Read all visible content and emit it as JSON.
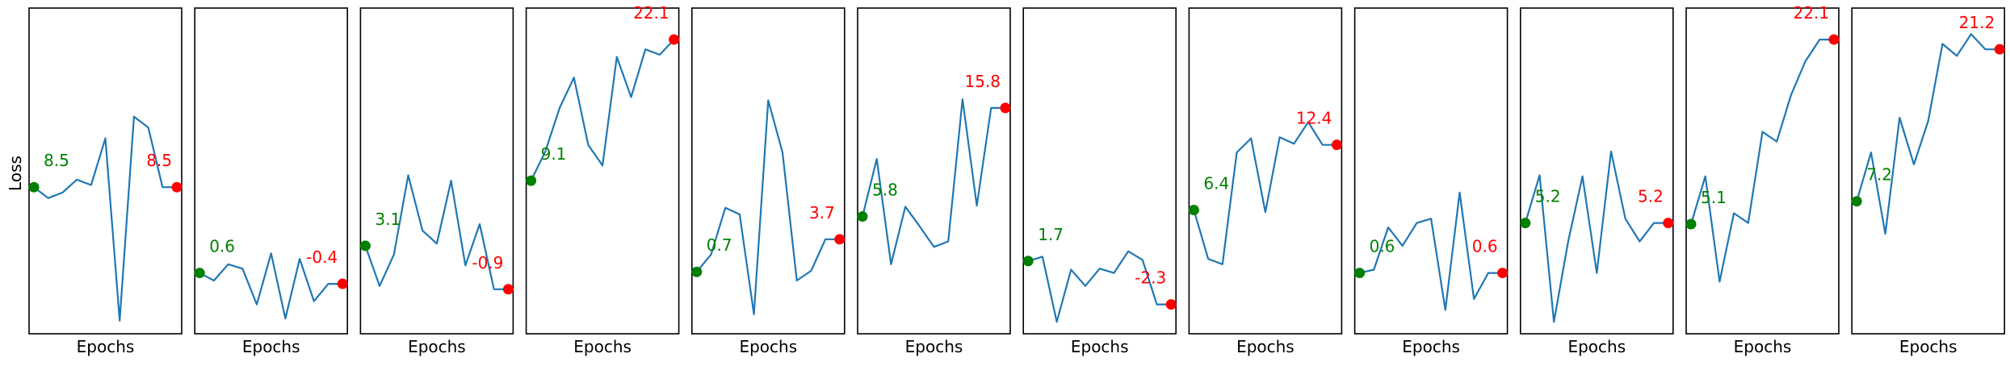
{
  "chart_data": {
    "type": "line",
    "ylabel": "Loss",
    "xlabel": "Epochs",
    "ylim": [
      -5,
      25
    ],
    "line_color": "#1f77b4",
    "start_color": "#008000",
    "end_color": "#ff0000",
    "panels": [
      {
        "x": [
          0,
          1,
          2,
          3,
          4,
          5,
          6,
          7,
          8,
          9,
          10
        ],
        "values": [
          8.5,
          7.5,
          8.0,
          9.2,
          8.7,
          13.0,
          -3.8,
          15.0,
          14.0,
          8.5,
          8.5
        ],
        "start_label": "8.5",
        "end_label": "8.5"
      },
      {
        "x": [
          0,
          1,
          2,
          3,
          4,
          5,
          6,
          7,
          8,
          9,
          10
        ],
        "values": [
          0.6,
          -0.1,
          1.4,
          1.0,
          -2.3,
          2.4,
          -3.6,
          1.9,
          -2.0,
          -0.4,
          -0.4
        ],
        "start_label": "0.6",
        "end_label": "-0.4"
      },
      {
        "x": [
          0,
          1,
          2,
          3,
          4,
          5,
          6,
          7,
          8,
          9,
          10
        ],
        "values": [
          3.1,
          -0.6,
          2.3,
          9.6,
          4.5,
          3.3,
          9.1,
          1.3,
          5.1,
          -0.9,
          -0.9
        ],
        "start_label": "3.1",
        "end_label": "-0.9"
      },
      {
        "x": [
          0,
          1,
          2,
          3,
          4,
          5,
          6,
          7,
          8,
          9,
          10
        ],
        "values": [
          9.1,
          11.8,
          15.8,
          18.6,
          12.4,
          10.5,
          20.5,
          16.8,
          21.2,
          20.7,
          22.1
        ],
        "start_label": "9.1",
        "end_label": "22.1"
      },
      {
        "x": [
          0,
          1,
          2,
          3,
          4,
          5,
          6,
          7,
          8,
          9,
          10
        ],
        "values": [
          0.7,
          2.3,
          6.6,
          6.0,
          -3.2,
          16.5,
          11.7,
          -0.1,
          0.8,
          3.7,
          3.7
        ],
        "start_label": "0.7",
        "end_label": "3.7"
      },
      {
        "x": [
          0,
          1,
          2,
          3,
          4,
          5,
          6,
          7,
          8,
          9,
          10
        ],
        "values": [
          5.8,
          11.1,
          1.4,
          6.7,
          4.9,
          3.0,
          3.5,
          16.6,
          6.8,
          15.8,
          15.8
        ],
        "start_label": "5.8",
        "end_label": "15.8"
      },
      {
        "x": [
          0,
          1,
          2,
          3,
          4,
          5,
          6,
          7,
          8,
          9,
          10
        ],
        "values": [
          1.7,
          2.1,
          -3.9,
          0.9,
          -0.6,
          1.0,
          0.6,
          2.6,
          1.8,
          -2.3,
          -2.3
        ],
        "start_label": "1.7",
        "end_label": "-2.3"
      },
      {
        "x": [
          0,
          1,
          2,
          3,
          4,
          5,
          6,
          7,
          8,
          9,
          10
        ],
        "values": [
          6.4,
          1.9,
          1.4,
          11.7,
          13.0,
          6.2,
          13.1,
          12.5,
          14.5,
          12.4,
          12.4
        ],
        "start_label": "6.4",
        "end_label": "12.4"
      },
      {
        "x": [
          0,
          1,
          2,
          3,
          4,
          5,
          6,
          7,
          8,
          9,
          10
        ],
        "values": [
          0.6,
          0.9,
          4.8,
          3.1,
          5.2,
          5.6,
          -2.8,
          8.0,
          -1.8,
          0.6,
          0.6
        ],
        "start_label": "0.6",
        "end_label": "0.6"
      },
      {
        "x": [
          0,
          1,
          2,
          3,
          4,
          5,
          6,
          7,
          8,
          9,
          10
        ],
        "values": [
          5.2,
          9.6,
          -3.9,
          3.5,
          9.5,
          0.6,
          11.8,
          5.6,
          3.5,
          5.2,
          5.2
        ],
        "start_label": "5.2",
        "end_label": "5.2"
      },
      {
        "x": [
          0,
          1,
          2,
          3,
          4,
          5,
          6,
          7,
          8,
          9,
          10
        ],
        "values": [
          5.1,
          9.5,
          -0.2,
          6.1,
          5.2,
          13.6,
          12.7,
          17.0,
          20.1,
          22.1,
          22.1
        ],
        "start_label": "5.1",
        "end_label": "22.1"
      },
      {
        "x": [
          0,
          1,
          2,
          3,
          4,
          5,
          6,
          7,
          8,
          9,
          10
        ],
        "values": [
          7.2,
          11.7,
          4.2,
          14.9,
          10.6,
          14.6,
          21.7,
          20.6,
          22.6,
          21.2,
          21.2
        ],
        "start_label": "7.2",
        "end_label": "21.2"
      }
    ]
  }
}
